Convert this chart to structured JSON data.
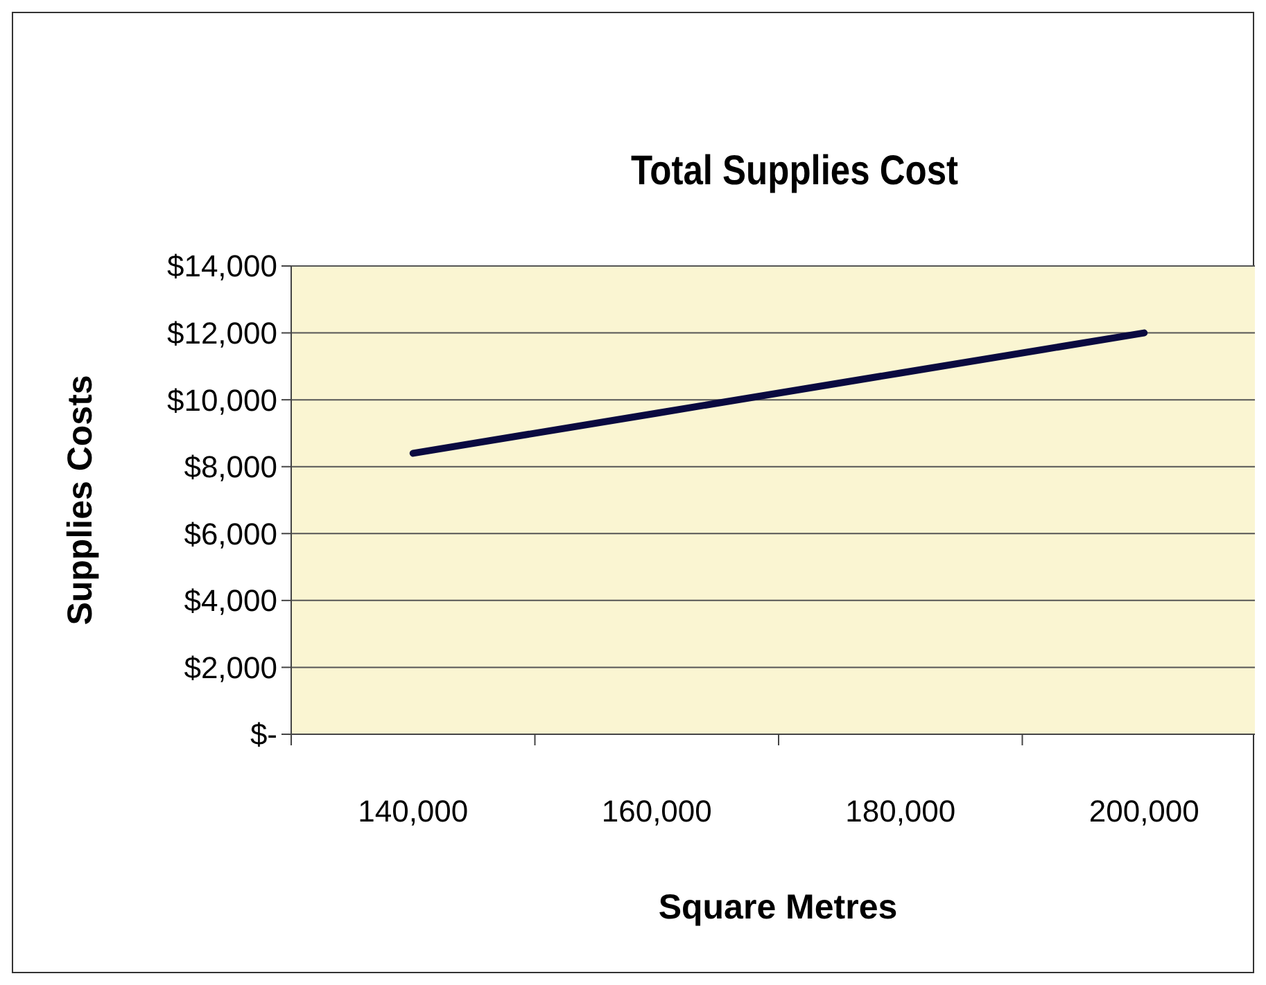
{
  "chart_data": {
    "type": "line",
    "title": "Total Supplies Cost",
    "xlabel": "Square Metres",
    "ylabel": "Supplies Costs",
    "categories": [
      "140,000",
      "160,000",
      "180,000",
      "200,000"
    ],
    "series": [
      {
        "color": "#0a0a40",
        "values": [
          8400,
          9600,
          10800,
          12000
        ]
      }
    ],
    "ylim": [
      0,
      14000
    ],
    "yticks": [
      {
        "value": 0,
        "label": "$-"
      },
      {
        "value": 2000,
        "label": "$2,000"
      },
      {
        "value": 4000,
        "label": "$4,000"
      },
      {
        "value": 6000,
        "label": "$6,000"
      },
      {
        "value": 8000,
        "label": "$8,000"
      },
      {
        "value": 10000,
        "label": "$10,000"
      },
      {
        "value": 12000,
        "label": "$12,000"
      },
      {
        "value": 14000,
        "label": "$14,000"
      }
    ],
    "grid": "y",
    "marker": "none",
    "line_style": "solid"
  }
}
